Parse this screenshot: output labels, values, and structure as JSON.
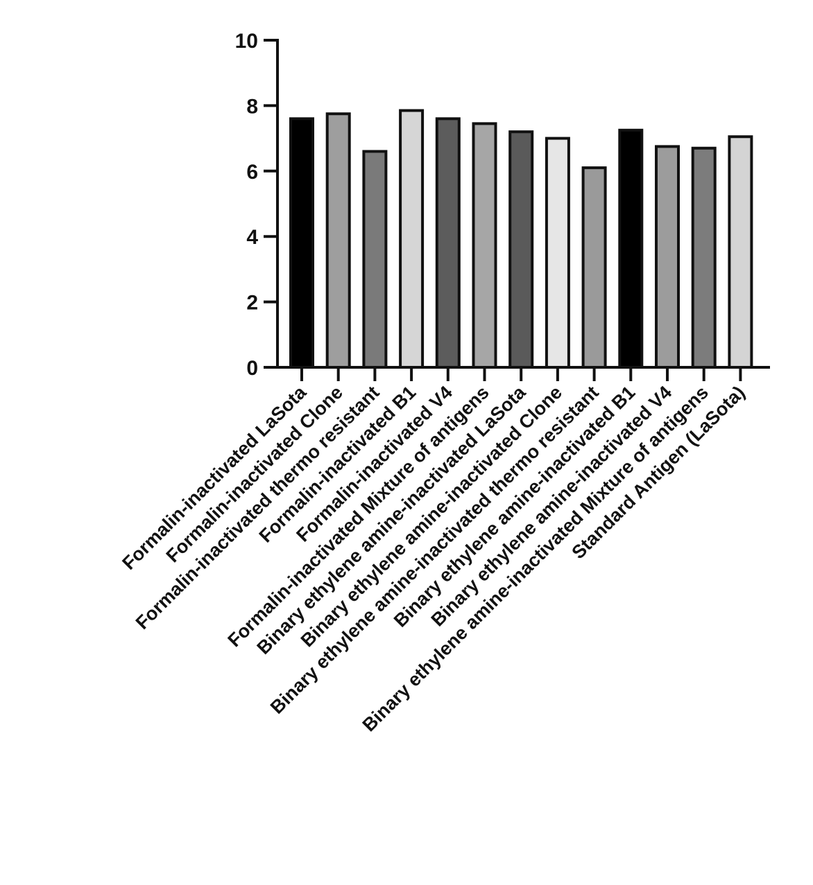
{
  "chart_data": {
    "type": "bar",
    "title": "",
    "xlabel": "",
    "ylabel": "",
    "ylim": [
      0,
      10
    ],
    "yticks": [
      0,
      2,
      4,
      6,
      8,
      10
    ],
    "grid": false,
    "categories": [
      "Formalin-inactivated LaSota",
      "Formalin-inactivated Clone",
      "Formalin-inactivated thermo resistant",
      "Formalin-inactivated B1",
      "Formalin-inactivated V4",
      "Formalin-inactivated Mixture of antigens",
      "Binary ethylene amine-inactivated LaSota",
      "Binary ethylene amine-inactivated Clone",
      "Binary ethylene amine-inactivated thermo resistant",
      "Binary ethylene amine-inactivated B1",
      "Binary ethylene amine-inactivated V4",
      "Binary ethylene amine-inactivated Mixture of antigens",
      "Standard Antigen (LaSota)"
    ],
    "values": [
      7.6,
      7.75,
      6.6,
      7.85,
      7.6,
      7.45,
      7.2,
      7.0,
      6.1,
      7.25,
      6.75,
      6.7,
      7.05
    ],
    "bar_colors": [
      "#000000",
      "#9e9e9e",
      "#7a7a7a",
      "#d6d6d6",
      "#5c5c5c",
      "#a6a6a6",
      "#5a5a5a",
      "#e6e6e6",
      "#9a9a9a",
      "#000000",
      "#9c9c9c",
      "#7c7c7c",
      "#d4d4d4"
    ]
  }
}
